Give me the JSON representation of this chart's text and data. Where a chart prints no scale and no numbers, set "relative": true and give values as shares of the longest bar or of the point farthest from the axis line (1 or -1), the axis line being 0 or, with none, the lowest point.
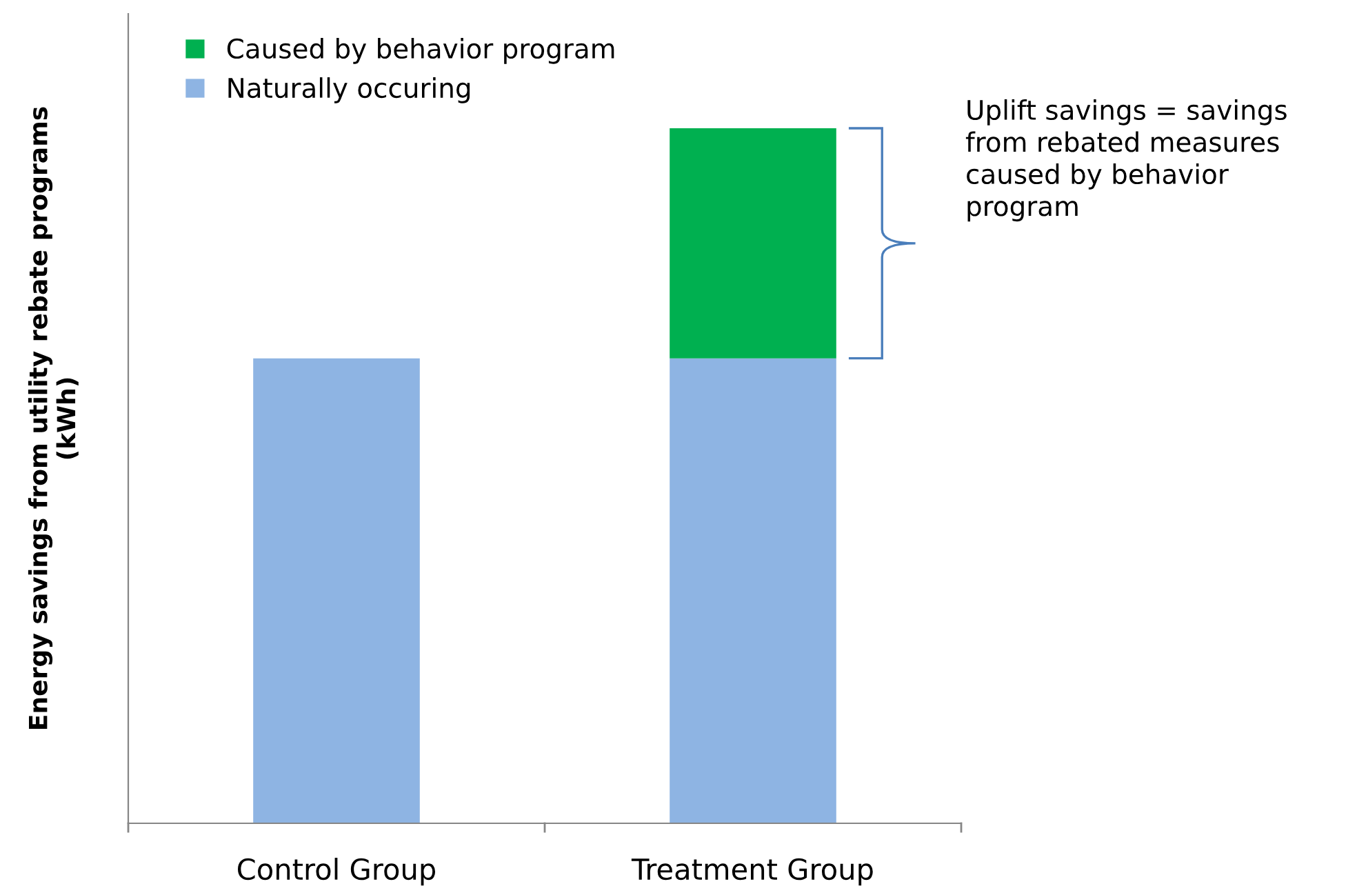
{
  "chart_data": {
    "type": "bar",
    "relative": true,
    "stacked": true,
    "ylabel": "Energy savings from utility rebate programs\n(kWh)",
    "categories": [
      "Control Group",
      "Treatment Group"
    ],
    "series": [
      {
        "name": "Naturally occuring",
        "color": "#8eb4e3",
        "values": [
          0.669,
          0.669
        ]
      },
      {
        "name": "Caused by behavior program",
        "color": "#00b050",
        "values": [
          null,
          0.331
        ]
      }
    ],
    "annotations": [
      "Uplift savings = savings\nfrom rebated measures\ncaused by behavior\nprogram"
    ],
    "legend": "top left",
    "grid": false
  }
}
